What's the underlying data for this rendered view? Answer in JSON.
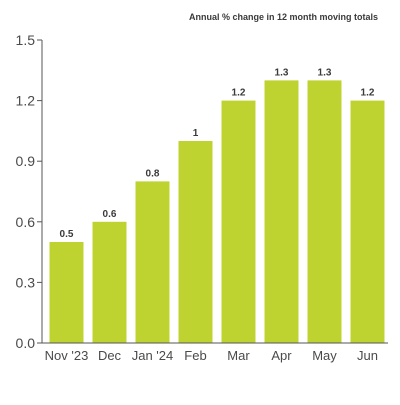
{
  "chart_data": {
    "type": "bar",
    "title": "Annual % change in 12 month moving totals",
    "xlabel": "",
    "ylabel": "",
    "categories": [
      "Nov '23",
      "Dec",
      "Jan '24",
      "Feb",
      "Mar",
      "Apr",
      "May",
      "Jun"
    ],
    "values": [
      0.5,
      0.6,
      0.8,
      1.0,
      1.2,
      1.3,
      1.3,
      1.2
    ],
    "data_labels": [
      "0.5",
      "0.6",
      "0.8",
      "1",
      "1.2",
      "1.3",
      "1.3",
      "1.2"
    ],
    "y_ticks": [
      0.0,
      0.3,
      0.6,
      0.9,
      1.2,
      1.5
    ],
    "y_tick_labels": [
      "0.0",
      "0.3",
      "0.6",
      "0.9",
      "1.2",
      "1.5"
    ],
    "ylim": [
      0,
      1.5
    ],
    "grid": false,
    "legend": "none",
    "colors": {
      "bar": "#bfd330",
      "axis": "#555555",
      "tick_text": "#4a4a4a",
      "data_label": "#3a3a3a"
    }
  }
}
